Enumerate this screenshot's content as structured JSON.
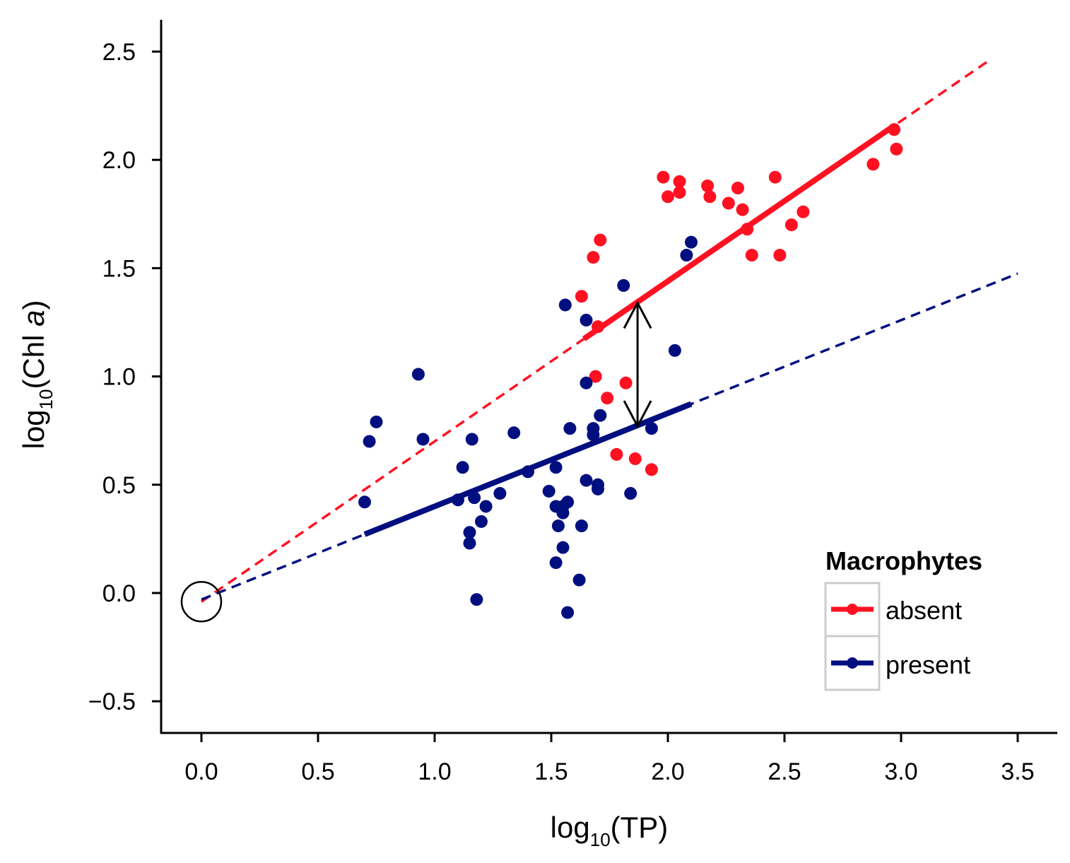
{
  "chart_data": {
    "type": "scatter",
    "xlabel": {
      "prefix": "log",
      "sub": "10",
      "rest": "(TP)"
    },
    "ylabel": {
      "prefix": "log",
      "sub": "10",
      "rest": "(Chl ",
      "italic": "a",
      "close": ")"
    },
    "xlim": [
      -0.17,
      3.67
    ],
    "ylim": [
      -0.64,
      2.65
    ],
    "xticks": [
      0.0,
      0.5,
      1.0,
      1.5,
      2.0,
      2.5,
      3.0,
      3.5
    ],
    "xtick_labels": [
      "0.0",
      "0.5",
      "1.0",
      "1.5",
      "2.0",
      "2.5",
      "3.0",
      "3.5"
    ],
    "yticks": [
      -0.5,
      0.0,
      0.5,
      1.0,
      1.5,
      2.0,
      2.5
    ],
    "ytick_labels": [
      "−0.5",
      "0.0",
      "0.5",
      "1.0",
      "1.5",
      "2.0",
      "2.5"
    ],
    "grid": false,
    "legend": {
      "title": "Macrophytes",
      "placement": "bottom-right"
    },
    "series": [
      {
        "name": "absent",
        "color": "#FF1122",
        "points": [
          [
            1.63,
            1.37
          ],
          [
            1.68,
            1.55
          ],
          [
            1.71,
            1.63
          ],
          [
            1.7,
            1.23
          ],
          [
            1.69,
            1.0
          ],
          [
            1.74,
            0.9
          ],
          [
            1.82,
            0.97
          ],
          [
            1.78,
            0.64
          ],
          [
            1.86,
            0.62
          ],
          [
            1.93,
            0.57
          ],
          [
            1.98,
            1.92
          ],
          [
            2.0,
            1.83
          ],
          [
            2.05,
            1.9
          ],
          [
            2.05,
            1.85
          ],
          [
            2.17,
            1.88
          ],
          [
            2.18,
            1.83
          ],
          [
            2.26,
            1.8
          ],
          [
            2.3,
            1.87
          ],
          [
            2.32,
            1.77
          ],
          [
            2.34,
            1.68
          ],
          [
            2.36,
            1.56
          ],
          [
            2.46,
            1.92
          ],
          [
            2.48,
            1.56
          ],
          [
            2.53,
            1.7
          ],
          [
            2.58,
            1.76
          ],
          [
            2.88,
            1.98
          ],
          [
            2.97,
            2.14
          ],
          [
            2.98,
            2.05
          ]
        ],
        "fit": {
          "intercept": -0.04,
          "slope": 0.74,
          "solid_range": [
            1.64,
            2.96
          ],
          "dashed_range": [
            0.0,
            3.37
          ]
        }
      },
      {
        "name": "present",
        "color": "#000F80",
        "points": [
          [
            0.7,
            0.42
          ],
          [
            0.72,
            0.7
          ],
          [
            0.75,
            0.79
          ],
          [
            0.93,
            1.01
          ],
          [
            0.95,
            0.71
          ],
          [
            1.1,
            0.43
          ],
          [
            1.12,
            0.58
          ],
          [
            1.15,
            0.28
          ],
          [
            1.15,
            0.23
          ],
          [
            1.16,
            0.71
          ],
          [
            1.17,
            0.44
          ],
          [
            1.18,
            -0.03
          ],
          [
            1.2,
            0.33
          ],
          [
            1.22,
            0.4
          ],
          [
            1.28,
            0.46
          ],
          [
            1.34,
            0.74
          ],
          [
            1.4,
            0.56
          ],
          [
            1.49,
            0.47
          ],
          [
            1.52,
            0.4
          ],
          [
            1.52,
            0.58
          ],
          [
            1.53,
            0.31
          ],
          [
            1.55,
            0.4
          ],
          [
            1.55,
            0.37
          ],
          [
            1.57,
            0.42
          ],
          [
            1.55,
            0.21
          ],
          [
            1.52,
            0.14
          ],
          [
            1.57,
            -0.09
          ],
          [
            1.56,
            1.33
          ],
          [
            1.58,
            0.76
          ],
          [
            1.62,
            0.06
          ],
          [
            1.63,
            0.31
          ],
          [
            1.65,
            1.26
          ],
          [
            1.65,
            0.97
          ],
          [
            1.65,
            0.52
          ],
          [
            1.68,
            0.73
          ],
          [
            1.68,
            0.76
          ],
          [
            1.7,
            0.5
          ],
          [
            1.7,
            0.48
          ],
          [
            1.71,
            0.82
          ],
          [
            1.81,
            1.42
          ],
          [
            1.84,
            0.46
          ],
          [
            1.93,
            0.76
          ],
          [
            2.03,
            1.12
          ],
          [
            2.08,
            1.56
          ],
          [
            2.1,
            1.62
          ]
        ],
        "fit": {
          "intercept": -0.03,
          "slope": 0.43,
          "solid_range": [
            0.7,
            2.1
          ],
          "dashed_range": [
            0.0,
            3.5
          ]
        }
      }
    ],
    "annotations": [
      {
        "type": "double-arrow",
        "x": 1.87,
        "y_from": 0.77,
        "y_to": 1.34
      },
      {
        "type": "circle",
        "x": 0.0,
        "y": -0.04
      }
    ]
  }
}
